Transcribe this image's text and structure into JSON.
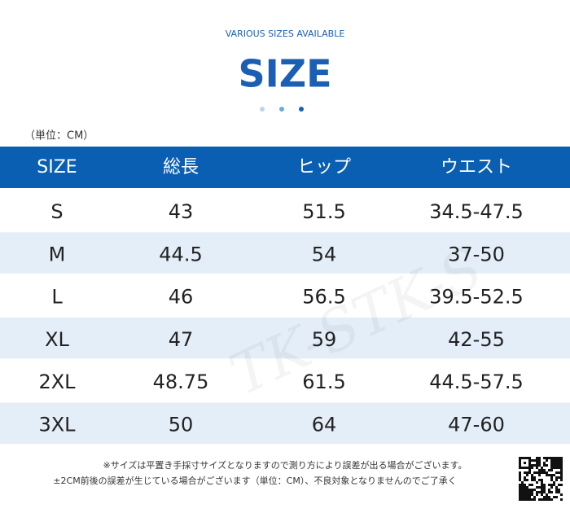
{
  "header": {
    "subtitle": "VARIOUS SIZES AVAILABLE",
    "title": "SIZE",
    "unit": "（単位：CM）"
  },
  "watermark": "TK-STK-S",
  "table": {
    "columns": [
      "SIZE",
      "総長",
      "ヒップ",
      "ウエスト"
    ],
    "rows": [
      [
        "S",
        "43",
        "51.5",
        "34.5-47.5"
      ],
      [
        "M",
        "44.5",
        "54",
        "37-50"
      ],
      [
        "L",
        "46",
        "56.5",
        "39.5-52.5"
      ],
      [
        "XL",
        "47",
        "59",
        "42-55"
      ],
      [
        "2XL",
        "48.75",
        "61.5",
        "44.5-57.5"
      ],
      [
        "3XL",
        "50",
        "64",
        "47-60"
      ]
    ]
  },
  "notes": [
    "※サイズは平置き手採寸サイズとなりますので測り方により誤差が出る場合がございます。",
    "±2CM前後の誤差が生じている場合がございます（単位：CM）、不良対象となりませんのでご了承く"
  ]
}
